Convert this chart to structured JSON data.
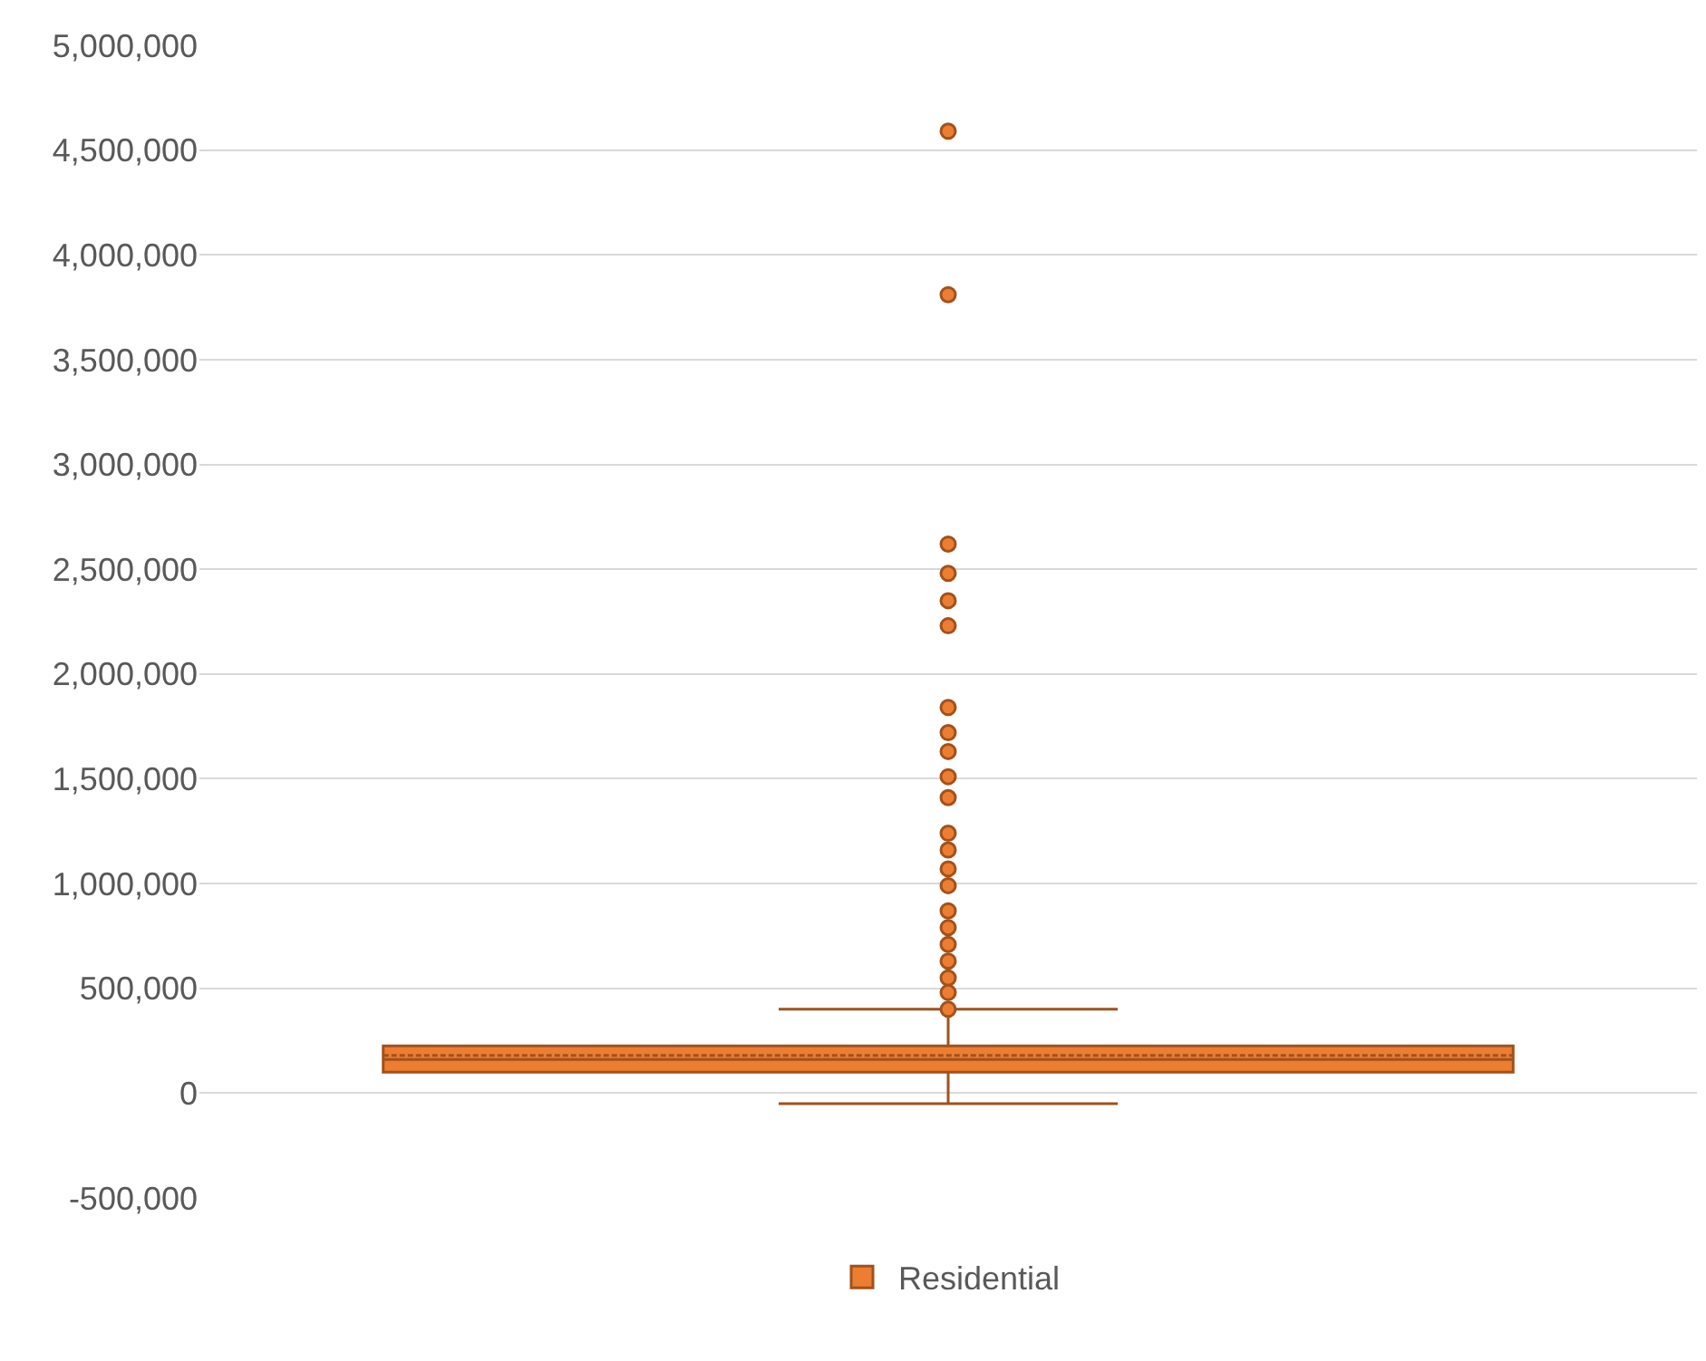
{
  "chart_data": {
    "type": "box",
    "categories": [
      null
    ],
    "series": [
      {
        "name": "Residential",
        "color": "#ed7d31",
        "boxes": [
          {
            "low": -50000,
            "q1": 100000,
            "median": 160000,
            "q3": 225000,
            "high": 400000,
            "mean": 180000,
            "outliers": [
              4590000,
              3810000,
              2620000,
              2480000,
              2350000,
              2230000,
              1840000,
              1720000,
              1630000,
              1510000,
              1410000,
              1240000,
              1160000,
              1070000,
              990000,
              870000,
              790000,
              710000,
              630000,
              550000,
              480000,
              400000
            ]
          }
        ]
      }
    ],
    "ylim": [
      -500000,
      5000000
    ],
    "yticks": [
      {
        "value": -500000,
        "label": "-500,000"
      },
      0,
      {
        "value": 500000,
        "label": "500,000"
      },
      {
        "value": 1000000,
        "label": "1,000,000"
      },
      {
        "value": 1500000,
        "label": "1,500,000"
      },
      {
        "value": 2000000,
        "label": "2,000,000"
      },
      {
        "value": 2500000,
        "label": "2,500,000"
      },
      {
        "value": 3000000,
        "label": "3,000,000"
      },
      {
        "value": 3500000,
        "label": "3,500,000"
      },
      {
        "value": 4000000,
        "label": "4,000,000"
      },
      {
        "value": 4500000,
        "label": "4,500,000"
      },
      {
        "value": 5000000,
        "label": "5,000,000"
      }
    ],
    "grid": "y",
    "legend": "bottom",
    "marker": "circle"
  }
}
